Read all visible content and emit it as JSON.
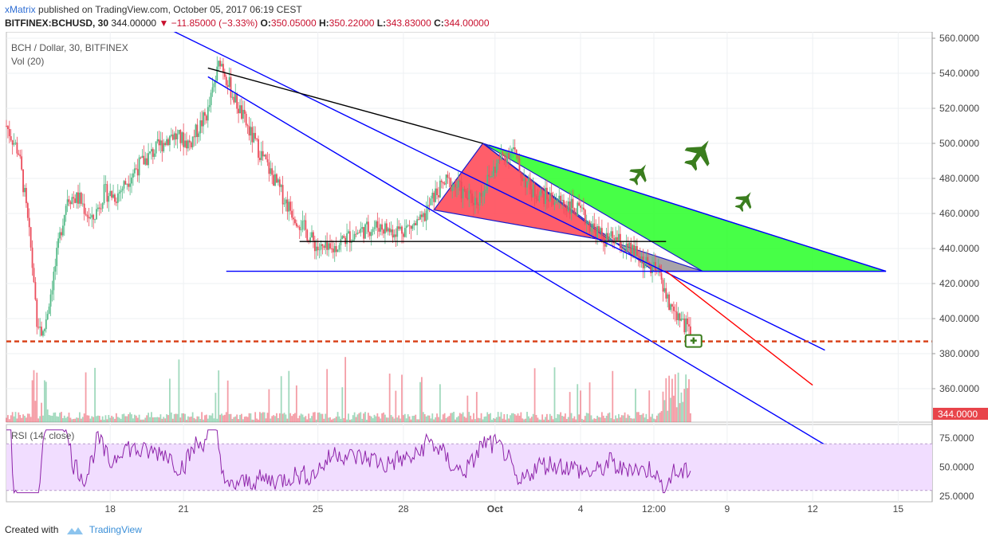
{
  "header": {
    "publisher": "xMatrix",
    "published_text": "published on TradingView.com, October 05, 2017 06:19 CEST",
    "symbol": "BITFINEX:BCHUSD, 30",
    "last": "344.00000",
    "change_arrow": "▼",
    "change": "−11.85000 (−3.33%)",
    "open_label": "O:",
    "open": "350.05000",
    "high_label": "H:",
    "high": "350.22000",
    "low_label": "L:",
    "low": "343.83000",
    "close_label": "C:",
    "close": "344.00000"
  },
  "footer": {
    "created_with": "Created with",
    "brand": "TradingView"
  },
  "colors": {
    "up": "#53b987",
    "down": "#eb4d5c",
    "blue_line": "#0000ff",
    "red_line": "#ff0000",
    "dashed_level": "#d9441c",
    "green_area": "#33ff33",
    "red_area": "#ff4d5a",
    "rsi_line": "#8e24aa",
    "rsi_band": "#f1ddff",
    "jet": "#3a7d1e",
    "price_tag": "#e8444a"
  },
  "chart_data": [
    {
      "type": "candlestick",
      "title": "BCH / Dollar, 30, BITFINEX",
      "indicator_label": "Vol (20)",
      "yaxis_ticks": [
        "560.0000",
        "540.0000",
        "520.0000",
        "500.0000",
        "480.0000",
        "460.0000",
        "440.0000",
        "420.0000",
        "400.0000",
        "380.0000",
        "360.0000"
      ],
      "ylim": [
        340,
        565
      ],
      "xaxis_ticks": [
        "18",
        "21",
        "25",
        "28",
        "Oct",
        "4",
        "12:00",
        "9",
        "12",
        "15"
      ],
      "last_price_label": "344.0000",
      "dashed_level": 387,
      "price_path": [
        [
          0,
          510
        ],
        [
          2,
          495
        ],
        [
          3,
          470
        ],
        [
          4,
          440
        ],
        [
          5,
          400
        ],
        [
          6,
          390
        ],
        [
          8,
          430
        ],
        [
          9,
          452
        ],
        [
          10,
          470
        ],
        [
          12,
          468
        ],
        [
          14,
          455
        ],
        [
          16,
          472
        ],
        [
          18,
          470
        ],
        [
          21,
          485
        ],
        [
          24,
          495
        ],
        [
          27,
          505
        ],
        [
          30,
          500
        ],
        [
          33,
          518
        ],
        [
          35,
          548
        ],
        [
          37,
          528
        ],
        [
          40,
          505
        ],
        [
          43,
          485
        ],
        [
          46,
          465
        ],
        [
          49,
          450
        ],
        [
          51,
          440
        ],
        [
          53,
          438
        ],
        [
          55,
          445
        ],
        [
          58,
          450
        ],
        [
          61,
          453
        ],
        [
          63,
          450
        ],
        [
          66,
          452
        ],
        [
          68,
          455
        ],
        [
          70,
          470
        ],
        [
          72,
          478
        ],
        [
          74,
          475
        ],
        [
          75,
          470
        ],
        [
          77,
          467
        ],
        [
          79,
          480
        ],
        [
          81,
          492
        ],
        [
          83,
          497
        ],
        [
          84,
          484
        ],
        [
          86,
          473
        ],
        [
          88,
          470
        ],
        [
          90,
          468
        ],
        [
          92,
          465
        ],
        [
          94,
          460
        ],
        [
          96,
          452
        ],
        [
          98,
          445
        ],
        [
          100,
          445
        ],
        [
          101,
          440
        ],
        [
          103,
          437
        ],
        [
          105,
          430
        ],
        [
          107,
          425
        ],
        [
          108,
          410
        ],
        [
          110,
          402
        ],
        [
          111,
          397
        ],
        [
          112,
          393
        ]
      ],
      "trendlines": [
        {
          "color": "blue",
          "points": [
            [
              25,
              568
            ],
            [
              134,
              382
            ]
          ]
        },
        {
          "color": "blue",
          "points": [
            [
              33,
              538
            ],
            [
              134,
              328
            ]
          ]
        },
        {
          "color": "black",
          "points": [
            [
              33,
              543
            ],
            [
              78,
              500
            ]
          ]
        },
        {
          "color": "blue",
          "points": [
            [
              79,
              499
            ],
            [
              144,
              427
            ]
          ]
        },
        {
          "color": "blue",
          "points": [
            [
              36,
              427
            ],
            [
              144,
              427
            ]
          ]
        },
        {
          "color": "black",
          "points": [
            [
              48,
              444
            ],
            [
              108,
              444
            ]
          ]
        },
        {
          "color": "red",
          "points": [
            [
              108,
              427
            ],
            [
              132,
              362
            ]
          ]
        }
      ],
      "zones": [
        {
          "color": "red",
          "points": [
            [
              70,
              462
            ],
            [
              78,
              500
            ],
            [
              99,
              444
            ]
          ]
        },
        {
          "color": "gray",
          "points": [
            [
              78,
              500
            ],
            [
              99,
              444
            ],
            [
              114,
              427
            ],
            [
              106,
              427
            ]
          ]
        },
        {
          "color": "green",
          "points": [
            [
              78,
              500
            ],
            [
              114,
              427
            ],
            [
              144,
              427
            ]
          ]
        }
      ]
    },
    {
      "type": "line",
      "title": "RSI (14, close)",
      "yaxis_ticks": [
        "75.0000",
        "50.0000",
        "25.0000"
      ],
      "ylim": [
        20,
        82
      ],
      "band": [
        30,
        70
      ]
    }
  ]
}
